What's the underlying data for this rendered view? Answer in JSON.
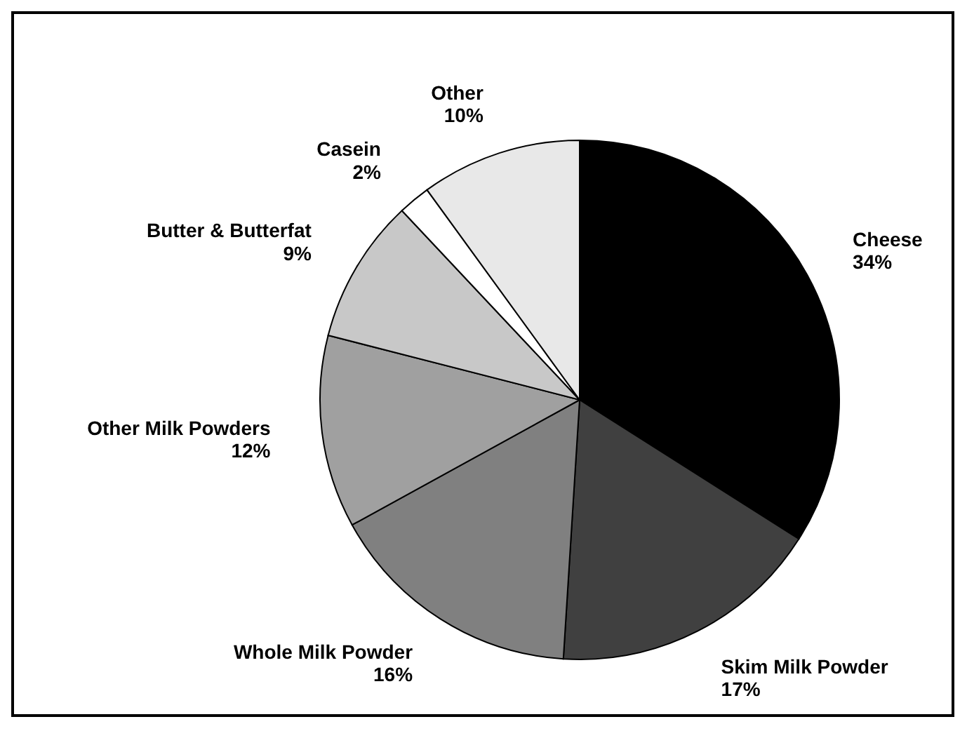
{
  "chart_data": {
    "type": "pie",
    "categories": [
      "Cheese",
      "Skim Milk Powder",
      "Whole Milk Powder",
      "Other Milk Powders",
      "Butter & Butterfat",
      "Casein",
      "Other"
    ],
    "values": [
      34,
      17,
      16,
      12,
      9,
      2,
      10
    ],
    "value_labels": [
      "34%",
      "17%",
      "16%",
      "12%",
      "9%",
      "2%",
      "10%"
    ],
    "colors": [
      "#000000",
      "#404040",
      "#808080",
      "#a0a0a0",
      "#c8c8c8",
      "#ffffff",
      "#e8e8e8"
    ]
  }
}
